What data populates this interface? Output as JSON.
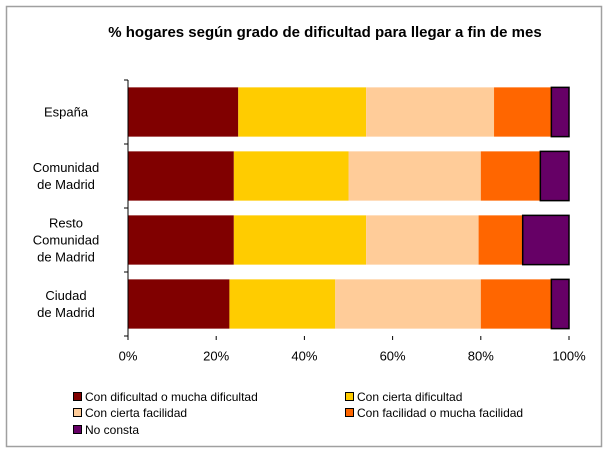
{
  "chart_data": {
    "type": "stacked_barh",
    "title": "% hogares según grado de dificultad para llegar a fin de mes",
    "categories": [
      "España",
      "Comunidad\nde Madrid",
      "Resto\nComunidad\nde Madrid",
      "Ciudad\nde Madrid"
    ],
    "series": [
      {
        "name": "Con dificultad o mucha dificultad",
        "color": "#800000",
        "values": [
          25,
          24,
          24,
          23
        ]
      },
      {
        "name": "Con cierta dificultad",
        "color": "#ffcc00",
        "values": [
          29,
          26,
          30,
          24
        ]
      },
      {
        "name": "Con cierta facilidad",
        "color": "#ffcc99",
        "values": [
          29,
          30,
          25.5,
          33
        ]
      },
      {
        "name": "Con facilidad o mucha facilidad",
        "color": "#ff6600",
        "values": [
          13,
          13.5,
          10,
          16
        ]
      },
      {
        "name": "No consta",
        "color": "#660066",
        "values": [
          4,
          6.5,
          10.5,
          4
        ]
      }
    ],
    "xlim": [
      0,
      100
    ],
    "xticks": [
      {
        "value": 0,
        "label": "0%"
      },
      {
        "value": 20,
        "label": "20%"
      },
      {
        "value": 40,
        "label": "40%"
      },
      {
        "value": 60,
        "label": "60%"
      },
      {
        "value": 80,
        "label": "80%"
      },
      {
        "value": 100,
        "label": "100%"
      }
    ],
    "legend": "bottom"
  }
}
